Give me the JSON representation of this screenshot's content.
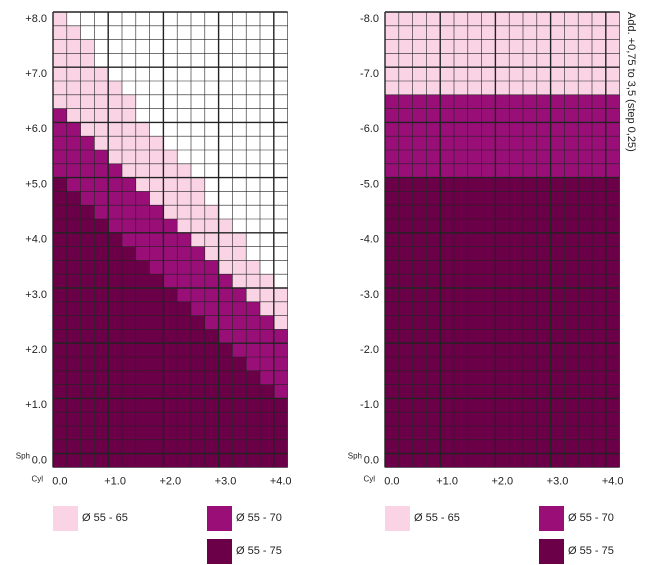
{
  "side_note": "Add. +0,75 to 3,5 (step 0,25)",
  "legend": [
    {
      "label": "Ø 55 - 65",
      "color": "#fad4e4"
    },
    {
      "label": "Ø 55 - 70",
      "color": "#9a0e78"
    },
    {
      "label": "Ø 55 - 75",
      "color": "#6b0048"
    }
  ],
  "panels": [
    {
      "row_labels": [
        "+8.0",
        "+7.0",
        "+6.0",
        "+5.0",
        "+4.0",
        "+3.0",
        "+2.0",
        "+1.0"
      ],
      "sph_label": "Sph",
      "zero_label": "0.0",
      "cyl_label": "Cyl",
      "col_labels": [
        "0.0",
        "+1.0",
        "+2.0",
        "+3.0",
        "+4.0"
      ],
      "bands": [
        [
          0,
          7,
          5,
          21
        ],
        [
          1,
          7,
          5,
          20
        ],
        [
          2,
          7,
          5,
          19
        ],
        [
          4,
          6,
          5,
          18
        ],
        [
          5,
          6,
          5,
          17
        ],
        [
          6,
          6,
          5,
          16
        ],
        [
          8,
          5,
          5,
          15
        ],
        [
          9,
          5,
          5,
          14
        ],
        [
          10,
          5,
          5,
          13
        ],
        [
          11,
          5,
          5,
          12
        ],
        [
          12,
          5,
          5,
          11
        ],
        [
          14,
          4,
          5,
          10
        ],
        [
          15,
          4,
          5,
          9
        ],
        [
          16,
          4,
          5,
          8
        ],
        [
          18,
          3,
          5,
          7
        ],
        [
          19,
          3,
          5,
          6
        ],
        [
          20,
          3,
          5,
          5
        ]
      ]
    },
    {
      "row_labels": [
        "-8.0",
        "-7.0",
        "-6.0",
        "-5.0",
        "-4.0",
        "-3.0",
        "-2.0",
        "-1.0"
      ],
      "sph_label": "Sph",
      "zero_label": "0.0",
      "cyl_label": "Cyl",
      "col_labels": [
        "0.0",
        "+1.0",
        "+2.0",
        "+3.0",
        "+4.0"
      ],
      "bands": [
        [
          0,
          6,
          6,
          21
        ],
        [
          0,
          6,
          6,
          21
        ],
        [
          0,
          6,
          6,
          21
        ],
        [
          0,
          6,
          6,
          21
        ],
        [
          0,
          6,
          6,
          21
        ],
        [
          0,
          6,
          6,
          21
        ],
        [
          0,
          6,
          6,
          21
        ],
        [
          0,
          6,
          6,
          21
        ],
        [
          0,
          6,
          6,
          21
        ],
        [
          0,
          6,
          6,
          21
        ],
        [
          0,
          6,
          6,
          21
        ],
        [
          0,
          6,
          6,
          21
        ],
        [
          0,
          6,
          6,
          21
        ],
        [
          0,
          6,
          6,
          21
        ],
        [
          0,
          6,
          6,
          21
        ],
        [
          0,
          6,
          6,
          21
        ],
        [
          0,
          6,
          6,
          21
        ]
      ]
    }
  ]
}
